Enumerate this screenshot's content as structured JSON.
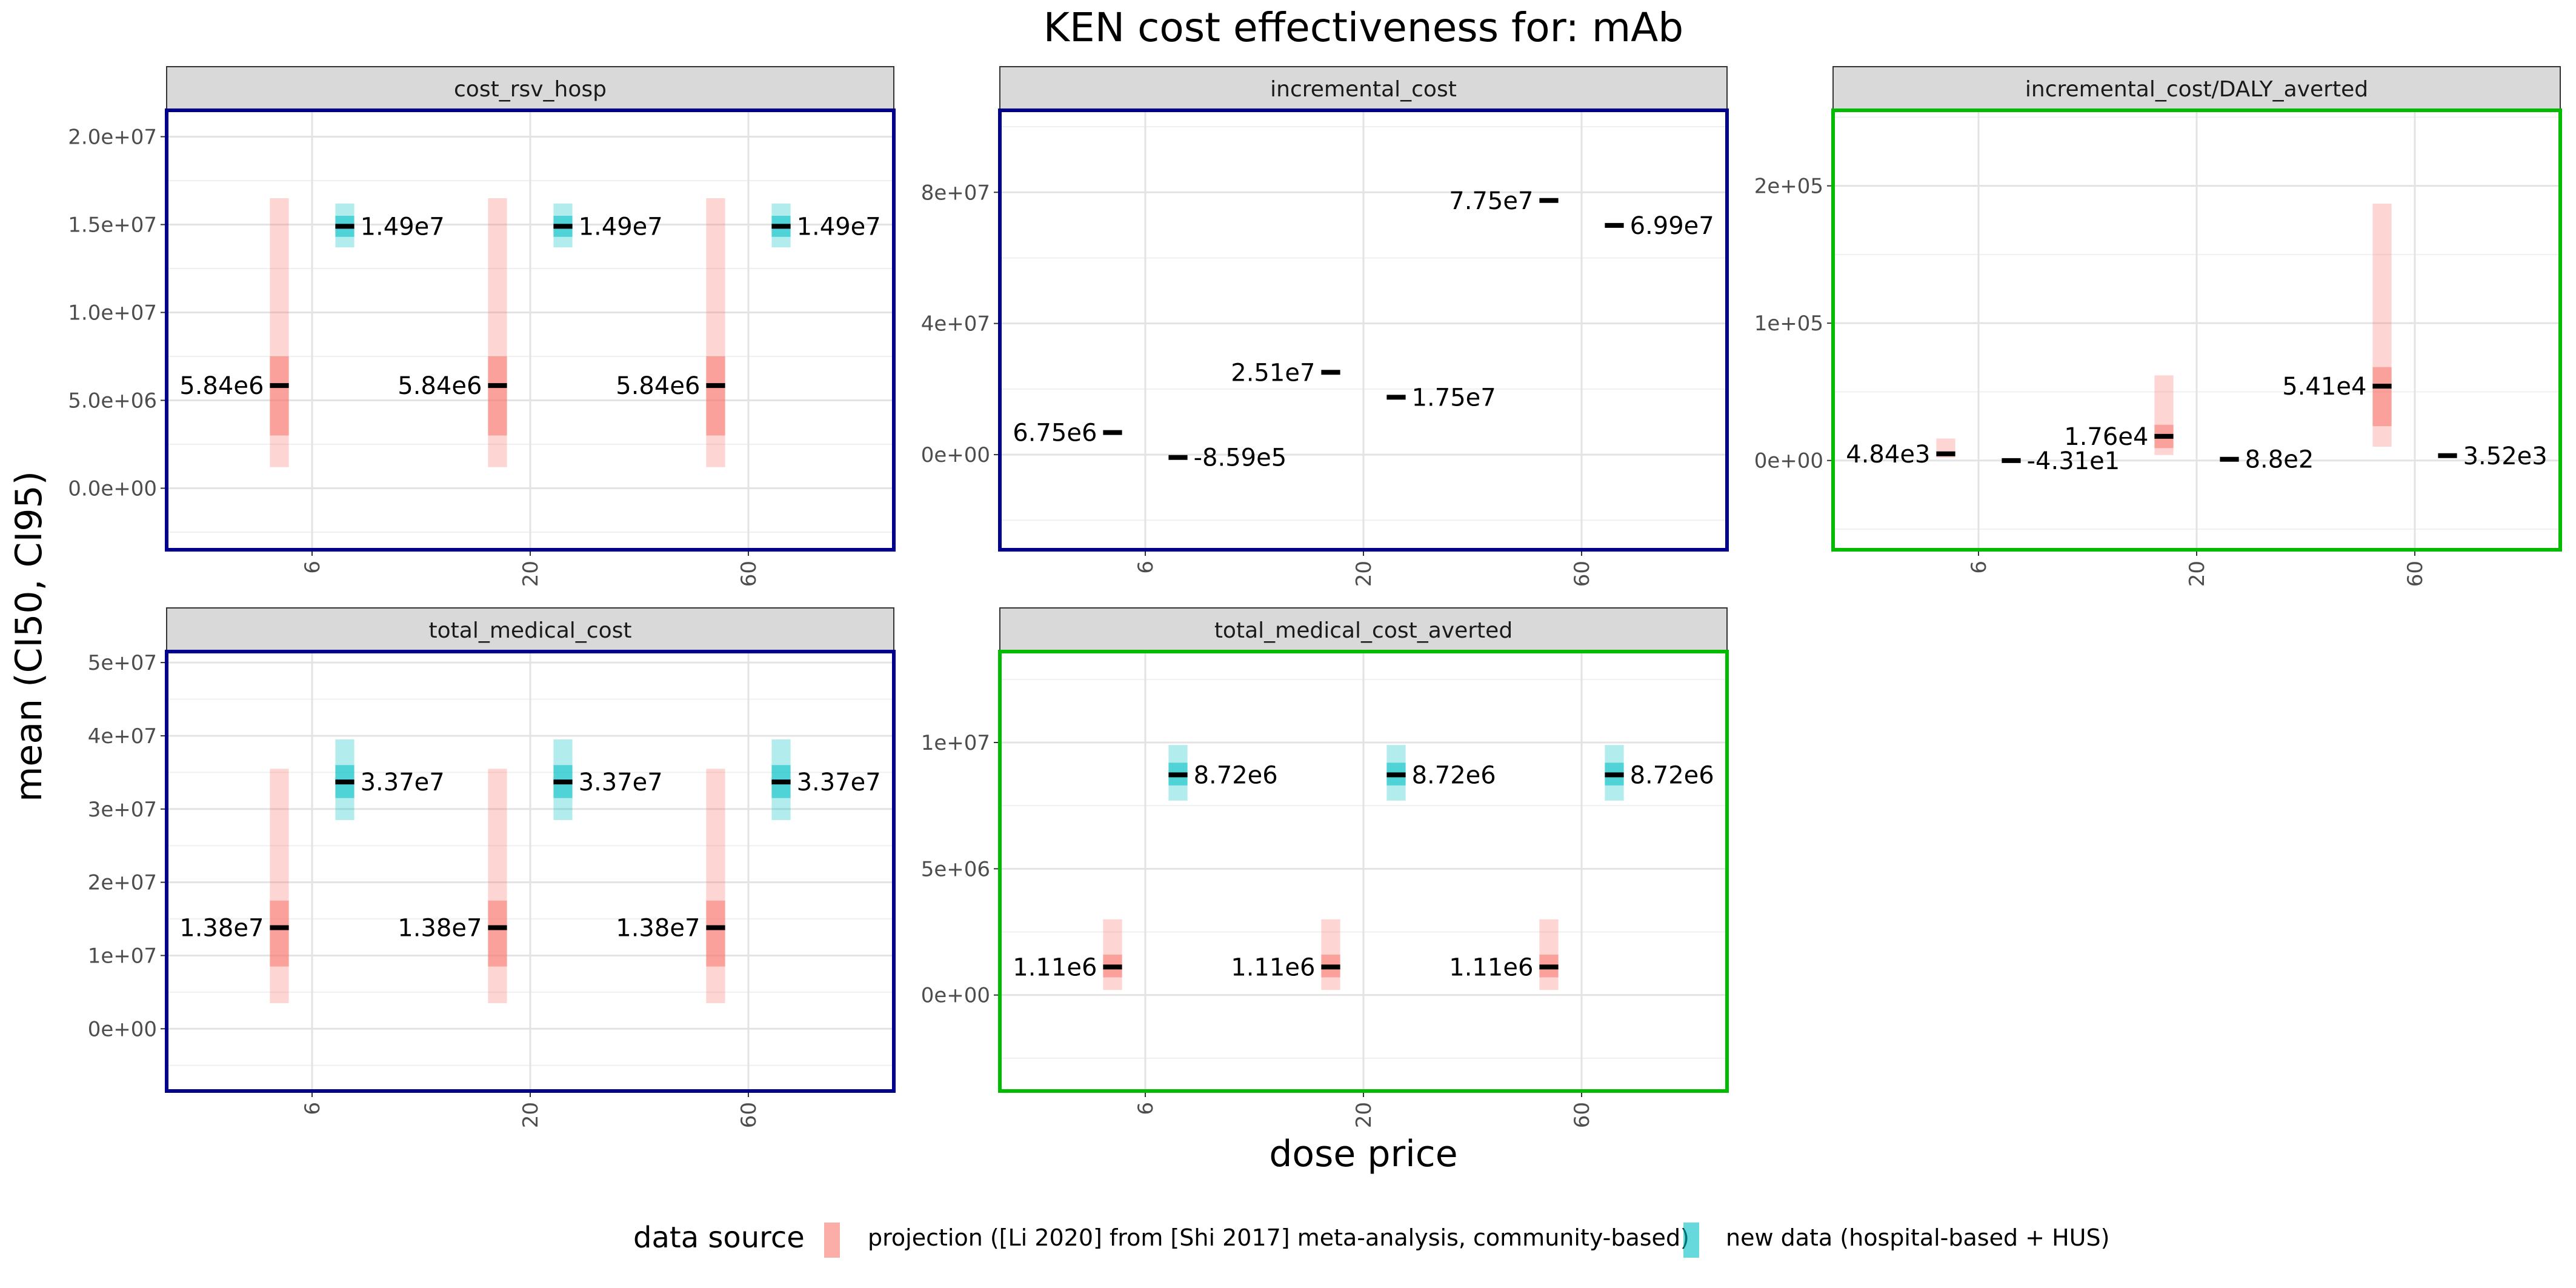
{
  "title": "KEN cost effectiveness for: mAb",
  "xlabel": "dose price",
  "ylabel": "mean (CI50, CI95)",
  "legend": {
    "title": "data source",
    "entries": [
      {
        "label": "projection ([Li 2020] from [Shi 2017] meta-analysis, community-based)",
        "color": "#F8766D"
      },
      {
        "label": "new data (hospital-based + HUS)",
        "color": "#00BFC4"
      }
    ]
  },
  "colors": {
    "projection": "#F8766D",
    "new_data": "#00BFC4",
    "border_blue": "#00008B",
    "border_green": "#00BB00",
    "strip": "#D9D9D9"
  },
  "chart_data": [
    {
      "type": "crossbar",
      "strip": "cost_rsv_hosp",
      "border_color": "#00008B",
      "categories": [
        "6",
        "20",
        "60"
      ],
      "yticks": [
        "0.0e+00",
        "5.0e+06",
        "1.0e+07",
        "1.5e+07",
        "2.0e+07"
      ],
      "ytick_values": [
        0,
        5000000,
        10000000,
        15000000,
        20000000
      ],
      "ylim": [
        -3500000,
        21500000
      ],
      "series": [
        {
          "name": "projection ([Li 2020] from [Shi 2017] meta-analysis, community-based)",
          "mean": [
            5840000,
            5840000,
            5840000
          ],
          "ci50": [
            [
              3000000,
              7500000
            ],
            [
              3000000,
              7500000
            ],
            [
              3000000,
              7500000
            ]
          ],
          "ci95": [
            [
              1200000,
              16500000
            ],
            [
              1200000,
              16500000
            ],
            [
              1200000,
              16500000
            ]
          ],
          "labels": [
            "5.84e6",
            "5.84e6",
            "5.84e6"
          ]
        },
        {
          "name": "new data (hospital-based + HUS)",
          "mean": [
            14900000,
            14900000,
            14900000
          ],
          "ci50": [
            [
              14300000,
              15500000
            ],
            [
              14300000,
              15500000
            ],
            [
              14300000,
              15500000
            ]
          ],
          "ci95": [
            [
              13700000,
              16200000
            ],
            [
              13700000,
              16200000
            ],
            [
              13700000,
              16200000
            ]
          ],
          "labels": [
            "1.49e7",
            "1.49e7",
            "1.49e7"
          ]
        }
      ]
    },
    {
      "type": "crossbar",
      "strip": "incremental_cost",
      "border_color": "#00008B",
      "categories": [
        "6",
        "20",
        "60"
      ],
      "yticks": [
        "0e+00",
        "4e+07",
        "8e+07"
      ],
      "ytick_values": [
        0,
        40000000,
        80000000
      ],
      "ylim": [
        -29000000,
        105000000
      ],
      "series": [
        {
          "name": "projection ([Li 2020] from [Shi 2017] meta-analysis, community-based)",
          "mean": [
            6750000,
            25100000,
            77500000
          ],
          "ci50": [
            [
              6500000,
              7000000
            ],
            [
              24800000,
              25400000
            ],
            [
              77200000,
              77800000
            ]
          ],
          "ci95": [
            [
              6400000,
              7100000
            ],
            [
              24600000,
              25600000
            ],
            [
              77000000,
              78000000
            ]
          ],
          "labels": [
            "6.75e6",
            "2.51e7",
            "7.75e7"
          ]
        },
        {
          "name": "new data (hospital-based + HUS)",
          "mean": [
            -859000,
            17500000,
            69900000
          ],
          "ci50": [
            [
              -1000000,
              -700000
            ],
            [
              17300000,
              17700000
            ],
            [
              69700000,
              70100000
            ]
          ],
          "ci95": [
            [
              -1100000,
              -600000
            ],
            [
              17200000,
              17800000
            ],
            [
              69600000,
              70200000
            ]
          ],
          "labels": [
            "-8.59e5",
            "1.75e7",
            "6.99e7"
          ]
        }
      ]
    },
    {
      "type": "crossbar",
      "strip": "incremental_cost/DALY_averted",
      "border_color": "#00BB00",
      "categories": [
        "6",
        "20",
        "60"
      ],
      "yticks": [
        "0e+00",
        "1e+05",
        "2e+05"
      ],
      "ytick_values": [
        0,
        100000,
        200000
      ],
      "ylim": [
        -65000,
        255000
      ],
      "series": [
        {
          "name": "projection ([Li 2020] from [Shi 2017] meta-analysis, community-based)",
          "mean": [
            4840,
            17600,
            54100
          ],
          "ci50": [
            [
              3500,
              6500
            ],
            [
              9000,
              26000
            ],
            [
              25000,
              68000
            ]
          ],
          "ci95": [
            [
              2000,
              16000
            ],
            [
              4000,
              62000
            ],
            [
              10000,
              187000
            ]
          ],
          "labels": [
            "4.84e3",
            "1.76e4",
            "5.41e4"
          ]
        },
        {
          "name": "new data (hospital-based + HUS)",
          "mean": [
            -43.1,
            880,
            3520
          ],
          "ci50": [
            [
              -200,
              100
            ],
            [
              700,
              1100
            ],
            [
              3300,
              3800
            ]
          ],
          "ci95": [
            [
              -300,
              200
            ],
            [
              600,
              1200
            ],
            [
              3200,
              3900
            ]
          ],
          "labels": [
            "-4.31e1",
            "8.8e2",
            "3.52e3"
          ]
        }
      ]
    },
    {
      "type": "crossbar",
      "strip": "total_medical_cost",
      "border_color": "#00008B",
      "categories": [
        "6",
        "20",
        "60"
      ],
      "yticks": [
        "0e+00",
        "1e+07",
        "2e+07",
        "3e+07",
        "4e+07",
        "5e+07"
      ],
      "ytick_values": [
        0,
        10000000,
        20000000,
        30000000,
        40000000,
        50000000
      ],
      "ylim": [
        -8500000,
        51500000
      ],
      "series": [
        {
          "name": "projection ([Li 2020] from [Shi 2017] meta-analysis, community-based)",
          "mean": [
            13800000,
            13800000,
            13800000
          ],
          "ci50": [
            [
              8500000,
              17500000
            ],
            [
              8500000,
              17500000
            ],
            [
              8500000,
              17500000
            ]
          ],
          "ci95": [
            [
              3500000,
              35500000
            ],
            [
              3500000,
              35500000
            ],
            [
              3500000,
              35500000
            ]
          ],
          "labels": [
            "1.38e7",
            "1.38e7",
            "1.38e7"
          ]
        },
        {
          "name": "new data (hospital-based + HUS)",
          "mean": [
            33700000,
            33700000,
            33700000
          ],
          "ci50": [
            [
              31500000,
              36000000
            ],
            [
              31500000,
              36000000
            ],
            [
              31500000,
              36000000
            ]
          ],
          "ci95": [
            [
              28500000,
              39500000
            ],
            [
              28500000,
              39500000
            ],
            [
              28500000,
              39500000
            ]
          ],
          "labels": [
            "3.37e7",
            "3.37e7",
            "3.37e7"
          ]
        }
      ]
    },
    {
      "type": "crossbar",
      "strip": "total_medical_cost_averted",
      "border_color": "#00BB00",
      "categories": [
        "6",
        "20",
        "60"
      ],
      "yticks": [
        "0e+00",
        "5e+06",
        "1e+07"
      ],
      "ytick_values": [
        0,
        5000000,
        10000000
      ],
      "ylim": [
        -3800000,
        13600000
      ],
      "series": [
        {
          "name": "projection ([Li 2020] from [Shi 2017] meta-analysis, community-based)",
          "mean": [
            1110000,
            1110000,
            1110000
          ],
          "ci50": [
            [
              700000,
              1600000
            ],
            [
              700000,
              1600000
            ],
            [
              700000,
              1600000
            ]
          ],
          "ci95": [
            [
              200000,
              3000000
            ],
            [
              200000,
              3000000
            ],
            [
              200000,
              3000000
            ]
          ],
          "labels": [
            "1.11e6",
            "1.11e6",
            "1.11e6"
          ]
        },
        {
          "name": "new data (hospital-based + HUS)",
          "mean": [
            8720000,
            8720000,
            8720000
          ],
          "ci50": [
            [
              8300000,
              9200000
            ],
            [
              8300000,
              9200000
            ],
            [
              8300000,
              9200000
            ]
          ],
          "ci95": [
            [
              7700000,
              9900000
            ],
            [
              7700000,
              9900000
            ],
            [
              7700000,
              9900000
            ]
          ],
          "labels": [
            "8.72e6",
            "8.72e6",
            "8.72e6"
          ]
        }
      ]
    }
  ]
}
